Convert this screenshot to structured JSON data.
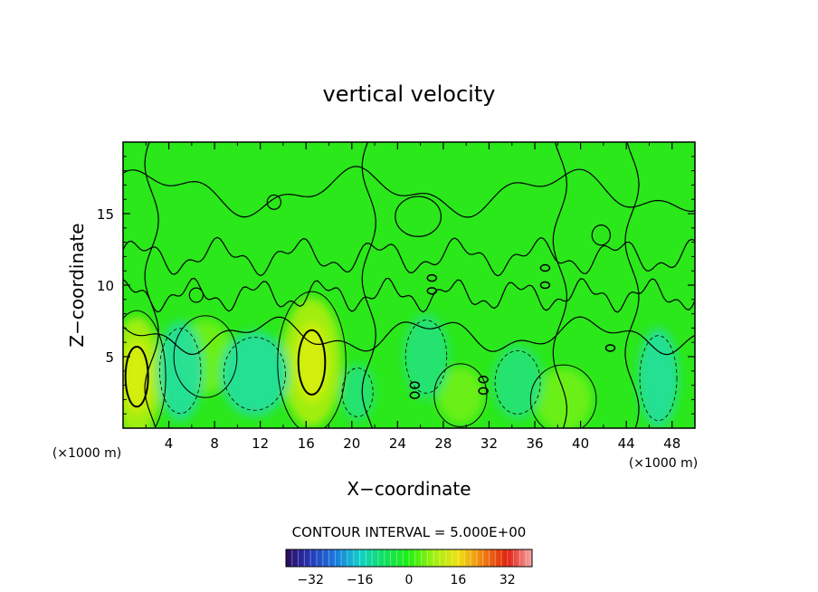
{
  "chart_data": {
    "type": "heatmap",
    "title": "vertical velocity",
    "xlabel": "X−coordinate",
    "ylabel": "Z−coordinate",
    "x_unit_left": "(×1000 m)",
    "x_unit_right": "(×1000 m)",
    "xlim": [
      0,
      50
    ],
    "ylim": [
      0,
      20
    ],
    "x_ticks": [
      4,
      8,
      12,
      16,
      20,
      24,
      28,
      32,
      36,
      40,
      44,
      48
    ],
    "y_ticks": [
      5,
      10,
      15
    ],
    "x_tick_labels": [
      "4",
      "8",
      "12",
      "16",
      "20",
      "24",
      "28",
      "32",
      "36",
      "40",
      "44",
      "48"
    ],
    "y_tick_labels": [
      "5",
      "10",
      "15"
    ],
    "contour_interval_text": "CONTOUR INTERVAL = 5.000E+00",
    "colorbar": {
      "range": [
        -40,
        40
      ],
      "ticks": [
        -32,
        -16,
        0,
        16,
        32
      ],
      "tick_labels": [
        "−32",
        "−16",
        "0",
        "16",
        "32"
      ],
      "colors": [
        "#2a0a5e",
        "#2638b8",
        "#1a78e0",
        "#10d0c8",
        "#10e060",
        "#20f010",
        "#a0f010",
        "#f0e010",
        "#f08010",
        "#e02010",
        "#f8a8a8"
      ]
    },
    "updraft_cells": [
      {
        "x": 1.2,
        "z": 3.6,
        "rx": 2.2,
        "rz": 4.2,
        "w": 12
      },
      {
        "x": 16.5,
        "z": 4.6,
        "rx": 2.6,
        "rz": 4.5,
        "w": 12
      },
      {
        "x": 7.2,
        "z": 5.0,
        "rx": 2.4,
        "rz": 2.6,
        "w": 7
      },
      {
        "x": 29.5,
        "z": 2.3,
        "rx": 2.0,
        "rz": 2.0,
        "w": 6
      },
      {
        "x": 38.5,
        "z": 2.0,
        "rx": 2.5,
        "rz": 2.2,
        "w": 4
      }
    ],
    "downdraft_cells": [
      {
        "x": 5.0,
        "z": 4.0,
        "rx": 2.0,
        "rz": 3.5,
        "w": -9
      },
      {
        "x": 11.5,
        "z": 3.8,
        "rx": 3.0,
        "rz": 3.0,
        "w": -8
      },
      {
        "x": 26.5,
        "z": 5.0,
        "rx": 2.0,
        "rz": 3.0,
        "w": -5
      },
      {
        "x": 34.5,
        "z": 3.2,
        "rx": 2.2,
        "rz": 2.6,
        "w": -6
      },
      {
        "x": 46.8,
        "z": 3.5,
        "rx": 1.8,
        "rz": 3.5,
        "w": -10
      },
      {
        "x": 20.5,
        "z": 2.5,
        "rx": 1.5,
        "rz": 2.0,
        "w": -3
      }
    ]
  }
}
